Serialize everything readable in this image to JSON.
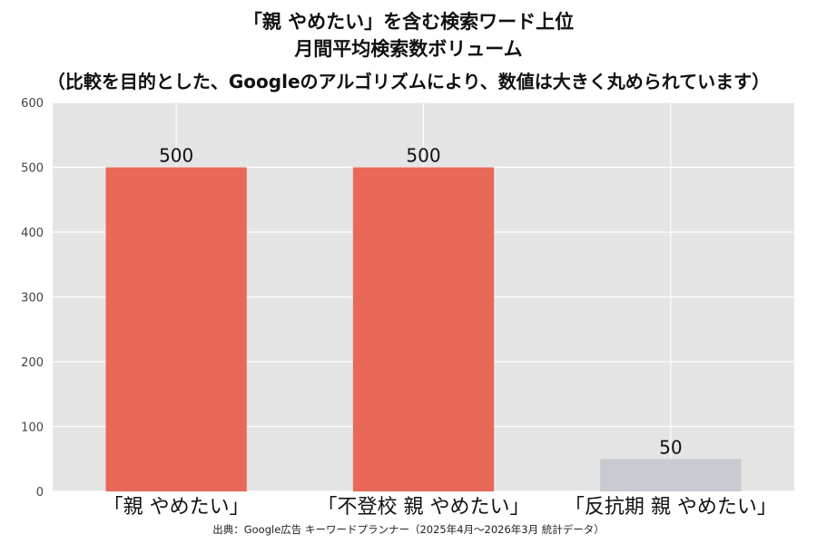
{
  "title_line1": "「親 やめたい」を含む検索ワード上位",
  "title_line2": "月間平均検索数ボリューム",
  "subtitle": "（比較を目的とした、Googleのアルゴリズムにより、数値は大きく丸められています）",
  "source": "出典：Google広告 キーワードプランナー（2025年4月～2026年3月 統計データ）",
  "colors": {
    "panel": "#e5e5e5",
    "grid": "#ffffff",
    "accent": "#e8685a",
    "muted": "#c8cbcf"
  },
  "chart_data": {
    "type": "bar",
    "categories": [
      "「親 やめたい」",
      "「不登校 親 やめたい」",
      "「反抗期 親 やめたい」"
    ],
    "values": [
      500,
      500,
      50
    ],
    "bar_colors": [
      "#e8685a",
      "#e8685a",
      "#c8cbcf"
    ],
    "ylim": [
      0,
      600
    ],
    "yticks": [
      "0",
      "100",
      "200",
      "300",
      "400",
      "500",
      "600"
    ],
    "ytick_values": [
      0,
      100,
      200,
      300,
      400,
      500,
      600
    ],
    "data_labels": [
      "500",
      "500",
      "50"
    ],
    "grid": true
  }
}
